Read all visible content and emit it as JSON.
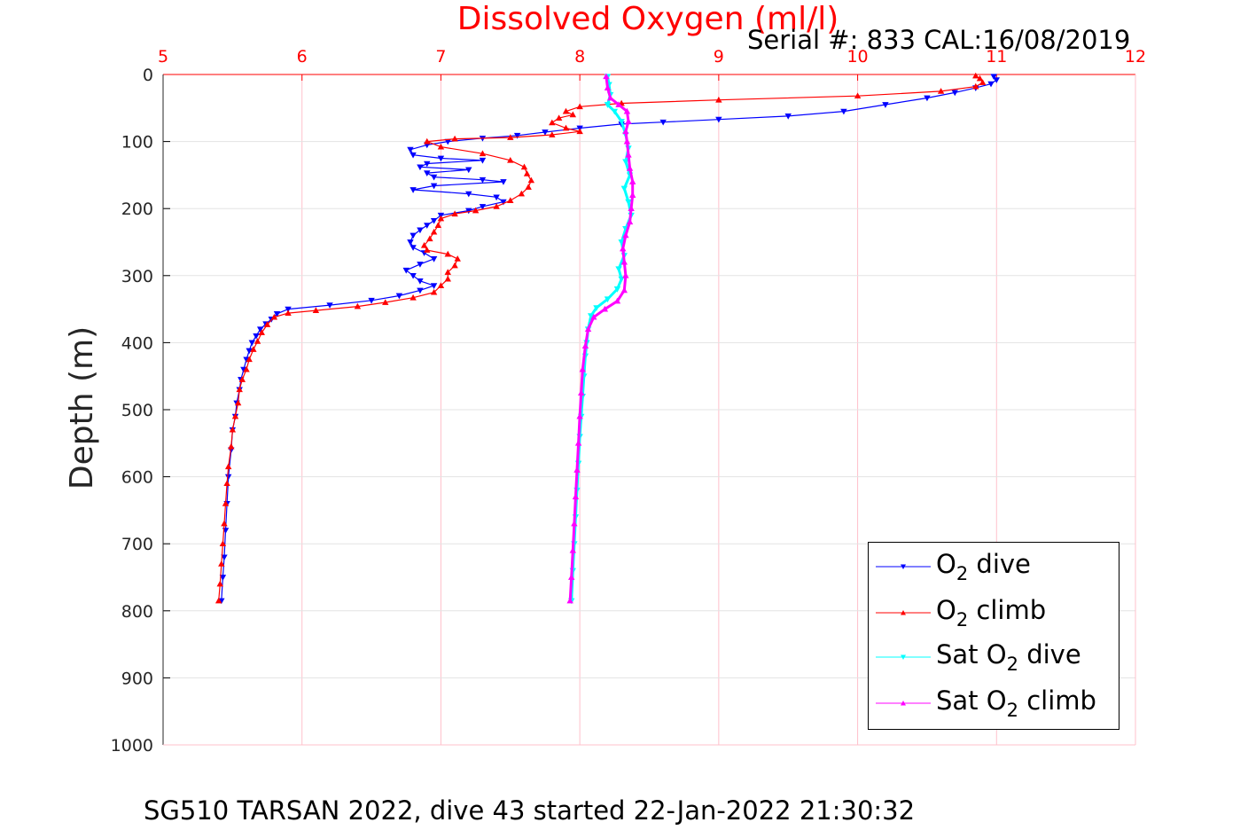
{
  "chart_data": {
    "type": "scatter",
    "title": "Dissolved Oxygen (ml/l)",
    "xlabel": "",
    "ylabel": "Depth (m)",
    "xlim": [
      5,
      12
    ],
    "ylim": [
      0,
      1000
    ],
    "y_reversed": true,
    "x_axis_position": "top",
    "x_ticks": [
      "5",
      "6",
      "7",
      "8",
      "9",
      "10",
      "11",
      "12"
    ],
    "y_ticks": [
      "0",
      "100",
      "200",
      "300",
      "400",
      "500",
      "600",
      "700",
      "800",
      "900",
      "1000"
    ],
    "grid": true,
    "legend_position": "bottom-right",
    "colors": {
      "title": "#ff0000",
      "x_ticks": "#ff0000",
      "grid": "#ffc0cb",
      "axes": "#000000"
    },
    "series": [
      {
        "name": "O2 dive",
        "legend": {
          "prefix": "O",
          "sub": "2",
          "suffix": " dive"
        },
        "color": "#0000ff",
        "marker": "triangle-down",
        "points": [
          [
            10.98,
            3
          ],
          [
            11.0,
            8
          ],
          [
            10.96,
            14
          ],
          [
            10.85,
            20
          ],
          [
            10.7,
            27
          ],
          [
            10.5,
            35
          ],
          [
            10.2,
            45
          ],
          [
            9.9,
            55
          ],
          [
            9.5,
            62
          ],
          [
            9.0,
            67
          ],
          [
            8.6,
            71
          ],
          [
            8.3,
            74
          ],
          [
            8.0,
            80
          ],
          [
            7.75,
            86
          ],
          [
            7.55,
            91
          ],
          [
            7.3,
            95
          ],
          [
            7.05,
            100
          ],
          [
            6.9,
            105
          ],
          [
            6.78,
            112
          ],
          [
            6.8,
            120
          ],
          [
            7.0,
            125
          ],
          [
            7.3,
            128
          ],
          [
            6.9,
            133
          ],
          [
            6.85,
            138
          ],
          [
            7.2,
            142
          ],
          [
            6.9,
            147
          ],
          [
            6.95,
            153
          ],
          [
            7.3,
            157
          ],
          [
            7.45,
            160
          ],
          [
            6.95,
            166
          ],
          [
            6.8,
            172
          ],
          [
            7.2,
            178
          ],
          [
            7.4,
            183
          ],
          [
            7.45,
            190
          ],
          [
            7.3,
            197
          ],
          [
            7.2,
            203
          ],
          [
            7.0,
            210
          ],
          [
            6.95,
            218
          ],
          [
            6.9,
            225
          ],
          [
            6.85,
            232
          ],
          [
            6.8,
            240
          ],
          [
            6.78,
            250
          ],
          [
            6.8,
            258
          ],
          [
            6.88,
            266
          ],
          [
            6.95,
            275
          ],
          [
            6.85,
            283
          ],
          [
            6.75,
            292
          ],
          [
            6.8,
            300
          ],
          [
            6.85,
            308
          ],
          [
            6.95,
            315
          ],
          [
            6.85,
            322
          ],
          [
            6.7,
            330
          ],
          [
            6.5,
            337
          ],
          [
            6.2,
            344
          ],
          [
            5.9,
            350
          ],
          [
            5.82,
            357
          ],
          [
            5.78,
            365
          ],
          [
            5.74,
            372
          ],
          [
            5.7,
            380
          ],
          [
            5.67,
            390
          ],
          [
            5.64,
            400
          ],
          [
            5.62,
            412
          ],
          [
            5.6,
            425
          ],
          [
            5.58,
            440
          ],
          [
            5.56,
            455
          ],
          [
            5.55,
            470
          ],
          [
            5.53,
            490
          ],
          [
            5.52,
            510
          ],
          [
            5.5,
            530
          ],
          [
            5.49,
            560
          ],
          [
            5.47,
            600
          ],
          [
            5.46,
            640
          ],
          [
            5.45,
            680
          ],
          [
            5.44,
            720
          ],
          [
            5.43,
            750
          ],
          [
            5.42,
            785
          ]
        ]
      },
      {
        "name": "O2 climb",
        "legend": {
          "prefix": "O",
          "sub": "2",
          "suffix": " climb"
        },
        "color": "#ff0000",
        "marker": "triangle-up",
        "points": [
          [
            5.4,
            785
          ],
          [
            5.41,
            760
          ],
          [
            5.42,
            730
          ],
          [
            5.43,
            700
          ],
          [
            5.44,
            670
          ],
          [
            5.45,
            640
          ],
          [
            5.46,
            610
          ],
          [
            5.47,
            585
          ],
          [
            5.49,
            555
          ],
          [
            5.5,
            530
          ],
          [
            5.52,
            510
          ],
          [
            5.54,
            490
          ],
          [
            5.55,
            470
          ],
          [
            5.57,
            455
          ],
          [
            5.6,
            440
          ],
          [
            5.62,
            425
          ],
          [
            5.65,
            410
          ],
          [
            5.68,
            398
          ],
          [
            5.71,
            385
          ],
          [
            5.75,
            373
          ],
          [
            5.8,
            362
          ],
          [
            5.9,
            356
          ],
          [
            6.1,
            352
          ],
          [
            6.4,
            346
          ],
          [
            6.6,
            340
          ],
          [
            6.8,
            333
          ],
          [
            6.95,
            325
          ],
          [
            7.0,
            315
          ],
          [
            7.05,
            305
          ],
          [
            7.05,
            295
          ],
          [
            7.1,
            285
          ],
          [
            7.12,
            275
          ],
          [
            7.05,
            268
          ],
          [
            6.9,
            262
          ],
          [
            6.88,
            255
          ],
          [
            6.92,
            245
          ],
          [
            6.95,
            235
          ],
          [
            6.98,
            225
          ],
          [
            7.0,
            215
          ],
          [
            7.1,
            208
          ],
          [
            7.25,
            203
          ],
          [
            7.4,
            197
          ],
          [
            7.5,
            188
          ],
          [
            7.58,
            178
          ],
          [
            7.63,
            168
          ],
          [
            7.65,
            158
          ],
          [
            7.62,
            148
          ],
          [
            7.6,
            138
          ],
          [
            7.5,
            128
          ],
          [
            7.3,
            118
          ],
          [
            7.0,
            108
          ],
          [
            6.9,
            100
          ],
          [
            7.1,
            96
          ],
          [
            7.5,
            94
          ],
          [
            7.8,
            90
          ],
          [
            8.0,
            85
          ],
          [
            7.9,
            80
          ],
          [
            7.8,
            72
          ],
          [
            7.85,
            65
          ],
          [
            7.95,
            60
          ],
          [
            7.9,
            55
          ],
          [
            8.0,
            48
          ],
          [
            8.3,
            43
          ],
          [
            9.0,
            38
          ],
          [
            10.0,
            32
          ],
          [
            10.6,
            25
          ],
          [
            10.85,
            18
          ],
          [
            10.9,
            12
          ],
          [
            10.88,
            6
          ],
          [
            10.85,
            2
          ]
        ]
      },
      {
        "name": "Sat O2 dive",
        "legend": {
          "prefix": "Sat O",
          "sub": "2",
          "suffix": " dive"
        },
        "color": "#00ffff",
        "marker": "triangle-down",
        "points": [
          [
            8.2,
            3
          ],
          [
            8.21,
            15
          ],
          [
            8.22,
            30
          ],
          [
            8.2,
            45
          ],
          [
            8.25,
            55
          ],
          [
            8.3,
            70
          ],
          [
            8.33,
            90
          ],
          [
            8.35,
            110
          ],
          [
            8.33,
            130
          ],
          [
            8.36,
            150
          ],
          [
            8.32,
            170
          ],
          [
            8.35,
            190
          ],
          [
            8.37,
            210
          ],
          [
            8.33,
            230
          ],
          [
            8.3,
            250
          ],
          [
            8.32,
            270
          ],
          [
            8.28,
            290
          ],
          [
            8.3,
            305
          ],
          [
            8.27,
            320
          ],
          [
            8.2,
            335
          ],
          [
            8.12,
            348
          ],
          [
            8.08,
            360
          ],
          [
            8.06,
            380
          ],
          [
            8.05,
            400
          ],
          [
            8.04,
            420
          ],
          [
            8.03,
            450
          ],
          [
            8.02,
            480
          ],
          [
            8.01,
            510
          ],
          [
            8.0,
            540
          ],
          [
            7.99,
            580
          ],
          [
            7.98,
            620
          ],
          [
            7.97,
            660
          ],
          [
            7.96,
            700
          ],
          [
            7.95,
            740
          ],
          [
            7.94,
            785
          ]
        ]
      },
      {
        "name": "Sat O2 climb",
        "legend": {
          "prefix": "Sat O",
          "sub": "2",
          "suffix": " climb"
        },
        "color": "#ff00ff",
        "marker": "triangle-up",
        "points": [
          [
            7.93,
            785
          ],
          [
            7.94,
            750
          ],
          [
            7.95,
            710
          ],
          [
            7.96,
            670
          ],
          [
            7.97,
            630
          ],
          [
            7.98,
            590
          ],
          [
            7.99,
            550
          ],
          [
            8.0,
            510
          ],
          [
            8.01,
            475
          ],
          [
            8.02,
            440
          ],
          [
            8.04,
            405
          ],
          [
            8.06,
            380
          ],
          [
            8.1,
            362
          ],
          [
            8.18,
            350
          ],
          [
            8.27,
            338
          ],
          [
            8.32,
            322
          ],
          [
            8.33,
            300
          ],
          [
            8.32,
            280
          ],
          [
            8.31,
            260
          ],
          [
            8.33,
            240
          ],
          [
            8.36,
            220
          ],
          [
            8.37,
            200
          ],
          [
            8.38,
            180
          ],
          [
            8.38,
            160
          ],
          [
            8.36,
            140
          ],
          [
            8.35,
            120
          ],
          [
            8.34,
            100
          ],
          [
            8.33,
            85
          ],
          [
            8.35,
            70
          ],
          [
            8.34,
            55
          ],
          [
            8.28,
            45
          ],
          [
            8.22,
            35
          ],
          [
            8.2,
            20
          ],
          [
            8.19,
            3
          ]
        ]
      }
    ]
  },
  "annotations": {
    "serial": "Serial #: 833  CAL:16/08/2019",
    "footer": "SG510 TARSAN 2022, dive 43 started 22-Jan-2022 21:30:32"
  }
}
